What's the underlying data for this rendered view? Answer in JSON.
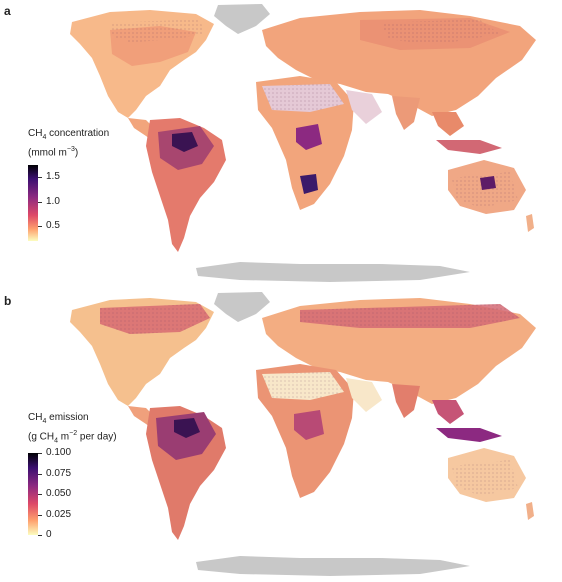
{
  "panels": [
    {
      "letter": "a",
      "legend_title_1": "CH",
      "legend_sub_1": "4",
      "legend_title_2": " concentration",
      "legend_unit_1": "(mmol m",
      "legend_unit_sup": "−3",
      "legend_unit_2": ")",
      "ticks": [
        "1.5",
        "1.0",
        "0.5"
      ],
      "tick_values": [
        1.5,
        1.0,
        0.5
      ],
      "range": [
        0.2,
        1.75
      ]
    },
    {
      "letter": "b",
      "legend_title_1": "CH",
      "legend_sub_1": "4",
      "legend_title_2": " emission",
      "legend_unit_1": "(g CH",
      "legend_unit_sub": "4",
      "legend_unit_2": " m",
      "legend_unit_sup": "−2",
      "legend_unit_3": " per day)",
      "ticks": [
        "0.100",
        "0.075",
        "0.050",
        "0.025",
        "0"
      ],
      "tick_values": [
        0.1,
        0.075,
        0.05,
        0.025,
        0
      ],
      "range": [
        0,
        0.1
      ]
    }
  ],
  "colors": {
    "antarctica": "#c8c8c8",
    "greenland": "#c8c8c8",
    "land_base": "#f6b884",
    "low": "#fde1b0",
    "mid": "#e88a6a",
    "high": "#b84a75",
    "very_high": "#5d1c67",
    "peak": "#1b0c41"
  }
}
